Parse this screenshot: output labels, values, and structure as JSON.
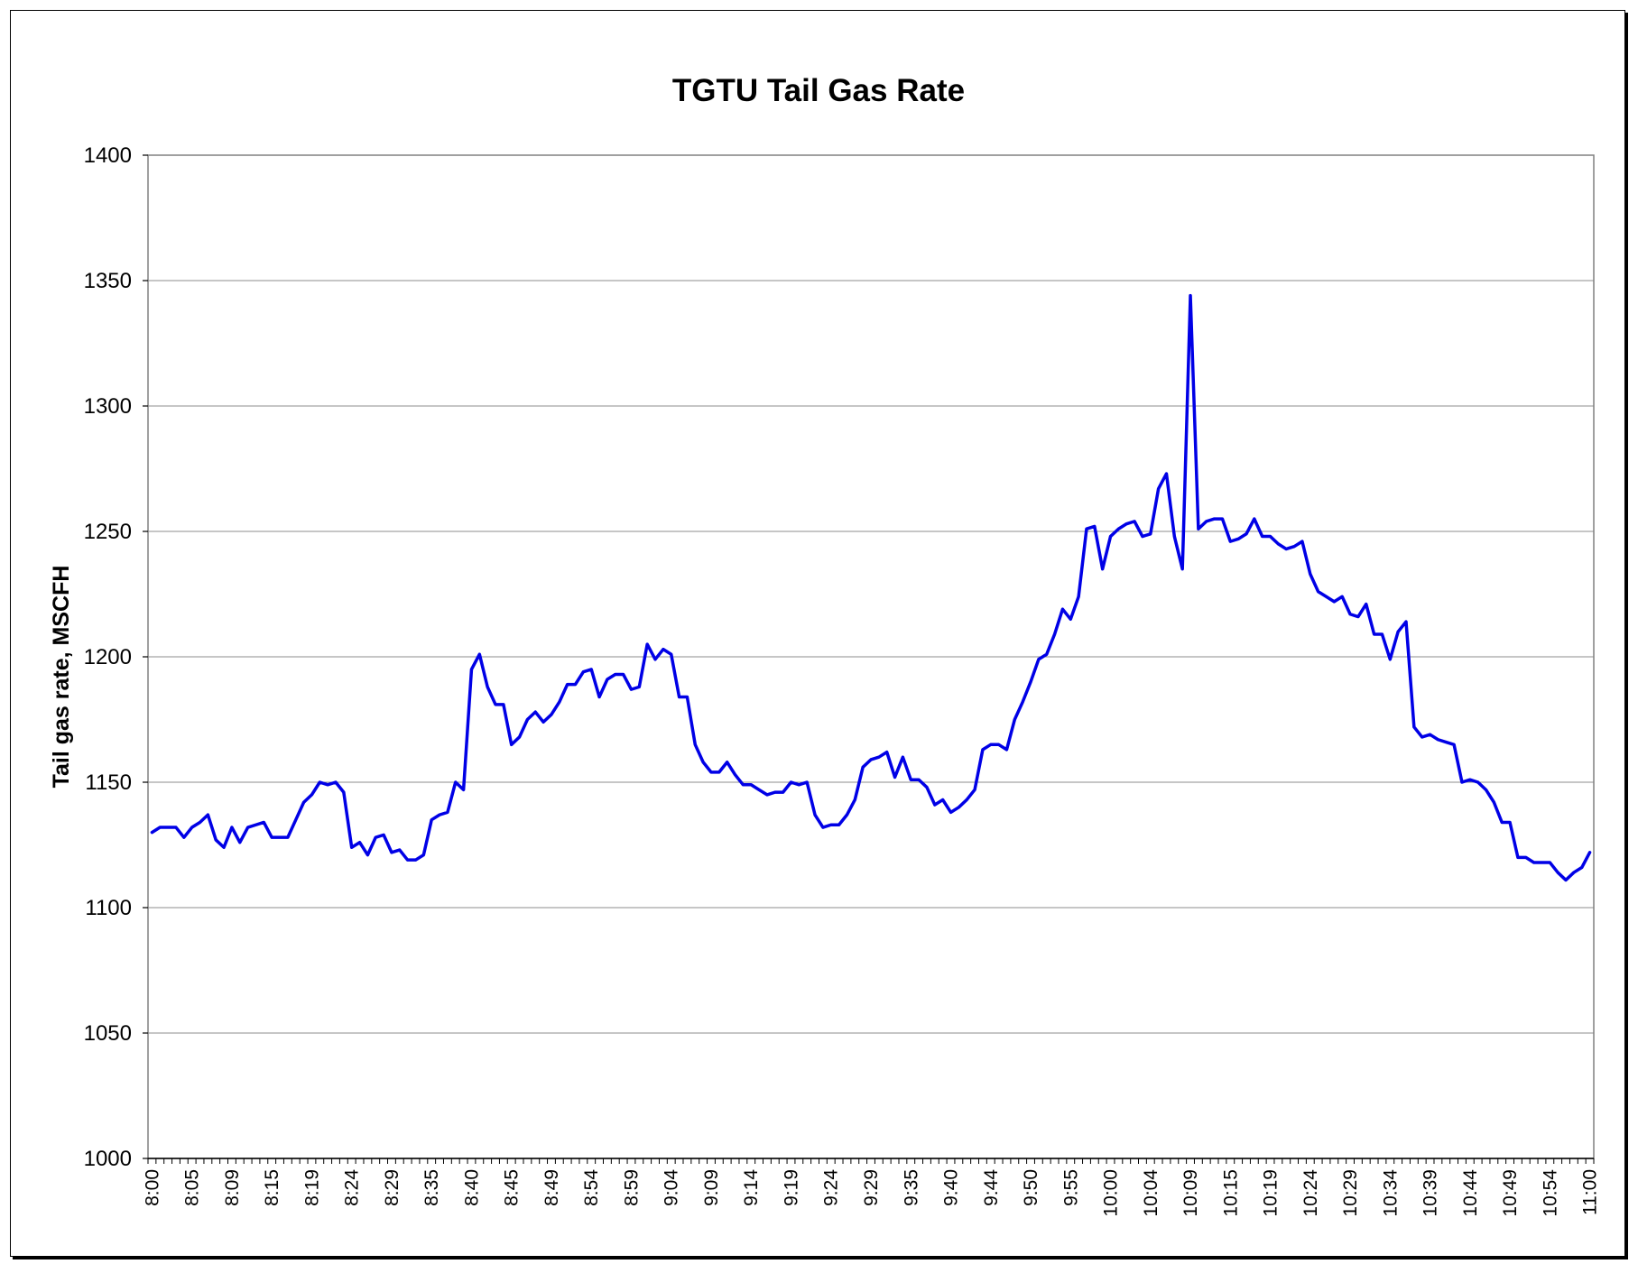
{
  "chart_data": {
    "type": "line",
    "title": "TGTU Tail Gas Rate",
    "xlabel": "",
    "ylabel": "Tail gas rate, MSCFH",
    "ylim": [
      1000,
      1400
    ],
    "ytick_step": 50,
    "grid": true,
    "legend": "none",
    "line_color": "#0000e6",
    "x_tick_labels": [
      "8:00",
      "8:05",
      "8:09",
      "8:15",
      "8:19",
      "8:24",
      "8:29",
      "8:35",
      "8:40",
      "8:45",
      "8:49",
      "8:54",
      "8:59",
      "9:04",
      "9:09",
      "9:14",
      "9:19",
      "9:24",
      "9:29",
      "9:35",
      "9:40",
      "9:44",
      "9:50",
      "9:55",
      "10:00",
      "10:04",
      "10:09",
      "10:15",
      "10:19",
      "10:24",
      "10:29",
      "10:34",
      "10:39",
      "10:44",
      "10:49",
      "10:54",
      "11:00"
    ],
    "series": [
      {
        "values": [
          1130,
          1132,
          1132,
          1132,
          1128,
          1132,
          1134,
          1137,
          1127,
          1124,
          1132,
          1126,
          1132,
          1133,
          1134,
          1128,
          1128,
          1128,
          1135,
          1142,
          1145,
          1150,
          1149,
          1150,
          1146,
          1124,
          1126,
          1121,
          1128,
          1129,
          1122,
          1123,
          1119,
          1119,
          1121,
          1135,
          1137,
          1138,
          1150,
          1147,
          1195,
          1201,
          1188,
          1181,
          1181,
          1165,
          1168,
          1175,
          1178,
          1174,
          1177,
          1182,
          1189,
          1189,
          1194,
          1195,
          1184,
          1191,
          1193,
          1193,
          1187,
          1188,
          1205,
          1199,
          1203,
          1201,
          1184,
          1184,
          1165,
          1158,
          1154,
          1154,
          1158,
          1153,
          1149,
          1149,
          1147,
          1145,
          1146,
          1146,
          1150,
          1149,
          1150,
          1137,
          1132,
          1133,
          1133,
          1137,
          1143,
          1156,
          1159,
          1160,
          1162,
          1152,
          1160,
          1151,
          1151,
          1148,
          1141,
          1143,
          1138,
          1140,
          1143,
          1147,
          1163,
          1165,
          1165,
          1163,
          1175,
          1182,
          1190,
          1199,
          1201,
          1209,
          1219,
          1215,
          1224,
          1251,
          1252,
          1235,
          1248,
          1251,
          1253,
          1254,
          1248,
          1249,
          1267,
          1273,
          1248,
          1235,
          1344,
          1251,
          1254,
          1255,
          1255,
          1246,
          1247,
          1249,
          1255,
          1248,
          1248,
          1245,
          1243,
          1244,
          1246,
          1233,
          1226,
          1224,
          1222,
          1224,
          1217,
          1216,
          1221,
          1209,
          1209,
          1199,
          1210,
          1214,
          1172,
          1168,
          1169,
          1167,
          1166,
          1165,
          1150,
          1151,
          1150,
          1147,
          1142,
          1134,
          1134,
          1120,
          1120,
          1118,
          1118,
          1118,
          1114,
          1111,
          1114,
          1116,
          1122
        ]
      }
    ]
  }
}
